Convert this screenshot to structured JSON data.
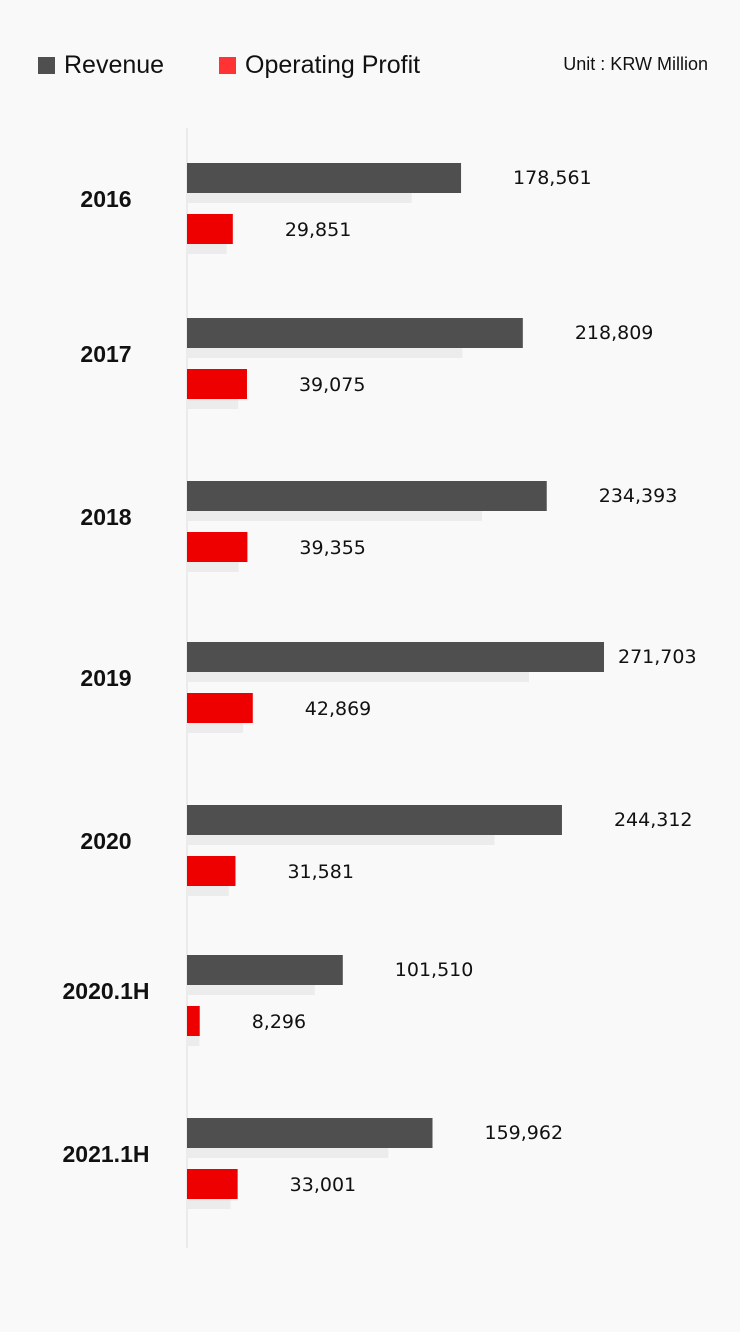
{
  "legend": {
    "revenue_label": "Revenue",
    "op_label": "Operating Profit",
    "unit_text": "Unit : KRW Million"
  },
  "colors": {
    "revenue": "#4f4f4f",
    "operating_profit": "#ee0000",
    "legend_op": "#ff3333",
    "shadow": "#ececec",
    "axis": "#dddddd"
  },
  "chart_data": {
    "type": "bar",
    "orientation": "horizontal",
    "categories": [
      "2016",
      "2017",
      "2018",
      "2019",
      "2020",
      "2020.1H",
      "2021.1H"
    ],
    "series": [
      {
        "name": "Revenue",
        "values": [
          178561,
          218809,
          234393,
          271703,
          244312,
          101510,
          159962
        ]
      },
      {
        "name": "Operating Profit",
        "values": [
          29851,
          39075,
          39355,
          42869,
          31581,
          8296,
          33001
        ]
      }
    ],
    "revenue_labels": [
      "178,561",
      "218,809",
      "234,393",
      "271,703",
      "244,312",
      "101,510",
      "159,962"
    ],
    "op_labels": [
      "29,851",
      "39,075",
      "39,355",
      "42,869",
      "31,581",
      "8,296",
      "33,001"
    ],
    "unit": "KRW Million",
    "legend_position": "top-left",
    "grid": false
  }
}
